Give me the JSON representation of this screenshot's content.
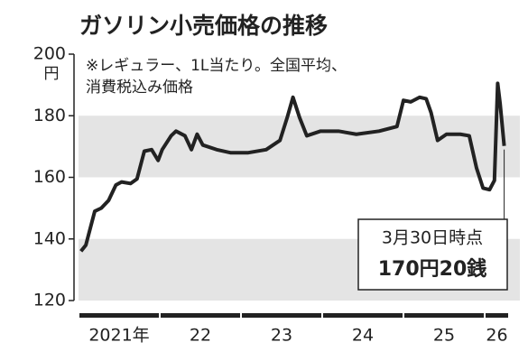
{
  "chart_data": {
    "type": "line",
    "title": "ガソリン小売価格の推移",
    "subtitle": [
      "※レギュラー、1L当たり。全国平均、",
      "消費税込み価格"
    ],
    "y_unit": "円",
    "x": [
      2021.03,
      2021.09,
      2021.2,
      2021.28,
      2021.37,
      2021.46,
      2021.53,
      2021.64,
      2021.72,
      2021.81,
      2021.9,
      2021.98,
      2022.03,
      2022.14,
      2022.2,
      2022.31,
      2022.39,
      2022.46,
      2022.53,
      2022.7,
      2022.87,
      2023.09,
      2023.31,
      2023.48,
      2023.57,
      2023.64,
      2023.72,
      2023.81,
      2023.98,
      2024.2,
      2024.42,
      2024.7,
      2024.92,
      2025.0,
      2025.09,
      2025.2,
      2025.28,
      2025.34,
      2025.42,
      2025.53,
      2025.7,
      2025.81,
      2025.9,
      2025.98,
      2026.06,
      2026.12,
      2026.16,
      2026.19,
      2026.24
    ],
    "series": [
      {
        "color": "#222222",
        "values": [
          136,
          138,
          149,
          150,
          152.5,
          157.5,
          158.5,
          158,
          159.5,
          168.5,
          169,
          165.5,
          169,
          173.5,
          175,
          173.5,
          169,
          174,
          170.5,
          169,
          168,
          168,
          169,
          172,
          179.5,
          186,
          179.5,
          173.5,
          175,
          175,
          174,
          175,
          176.5,
          185,
          184.5,
          186,
          185.5,
          181,
          172,
          174,
          174,
          173.5,
          163,
          156.5,
          156,
          159,
          190.5,
          184,
          170.2
        ]
      }
    ],
    "xlim": [
      2021,
      2026.3
    ],
    "xticks": [
      {
        "value": 2021,
        "label": "2021年"
      },
      {
        "value": 2022,
        "label": "22"
      },
      {
        "value": 2023,
        "label": "23"
      },
      {
        "value": 2024,
        "label": "24"
      },
      {
        "value": 2025,
        "label": "25"
      },
      {
        "value": 2026,
        "label": "26"
      }
    ],
    "ylim": [
      120,
      200
    ],
    "yticks": [
      120,
      140,
      160,
      180,
      200
    ],
    "bands": [
      [
        120,
        140
      ],
      [
        160,
        180
      ]
    ],
    "band_color": "#e4e4e4",
    "annotation": [
      "3月30日時点",
      "170円20銭"
    ]
  }
}
